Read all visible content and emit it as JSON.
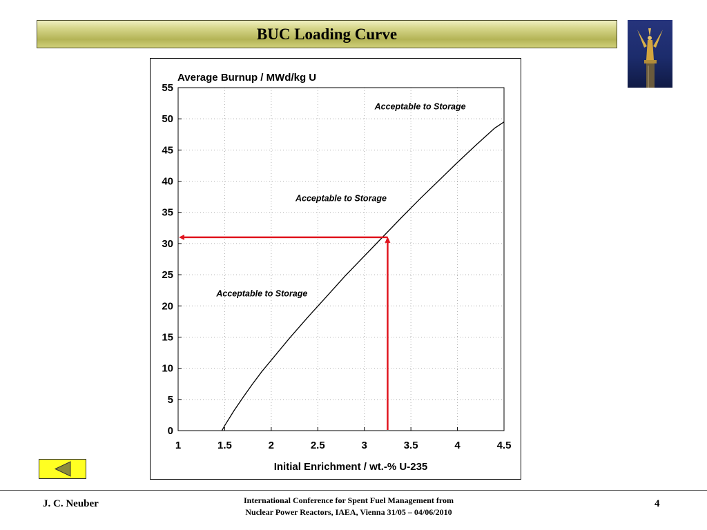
{
  "slide": {
    "title": "BUC Loading Curve",
    "footer": {
      "author": "J. C. Neuber",
      "conference_line1": "International Conference for Spent Fuel Management from",
      "conference_line2": "Nuclear Power Reactors, IAEA, Vienna 31/05 – 04/06/2010",
      "page_number": "4"
    },
    "logo_icon": "golden-statue-icon",
    "nav_icon": "back-triangle-icon"
  },
  "colors": {
    "title_bar": "#c8c86a",
    "curve": "#000000",
    "indicator": "#e0141e",
    "nav_button": "#ffff22",
    "nav_triangle": "#8a8a3c"
  },
  "chart_data": {
    "type": "line",
    "ylabel": "Average Burnup / MWd/kg U",
    "xlabel": "Initial Enrichment / wt.-% U-235",
    "xlim": [
      1,
      4.5
    ],
    "ylim": [
      0,
      55
    ],
    "x_ticks": [
      1,
      1.5,
      2,
      2.5,
      3,
      3.5,
      4,
      4.5
    ],
    "x_tick_labels": [
      "1",
      "1.5",
      "2",
      "2.5",
      "3",
      "3.5",
      "4",
      "4.5"
    ],
    "y_ticks": [
      0,
      5,
      10,
      15,
      20,
      25,
      30,
      35,
      40,
      45,
      50,
      55
    ],
    "y_tick_labels": [
      "0",
      "5",
      "10",
      "15",
      "20",
      "25",
      "30",
      "35",
      "40",
      "45",
      "50",
      "55"
    ],
    "grid": true,
    "series": [
      {
        "x": [
          1.47,
          1.5,
          1.6,
          1.7,
          1.8,
          1.9,
          2.0,
          2.2,
          2.4,
          2.6,
          2.8,
          3.0,
          3.2,
          3.4,
          3.6,
          3.8,
          4.0,
          4.2,
          4.4,
          4.5
        ],
        "y": [
          0,
          0.8,
          3.2,
          5.4,
          7.5,
          9.5,
          11.3,
          14.9,
          18.3,
          21.6,
          24.9,
          28.0,
          31.1,
          34.2,
          37.2,
          40.1,
          43.0,
          45.8,
          48.5,
          49.5
        ]
      }
    ],
    "annotations": [
      {
        "text": "Acceptable to Storage",
        "x": 3.6,
        "y": 51.5
      },
      {
        "text": "Acceptable to Storage",
        "x": 2.75,
        "y": 36.8
      },
      {
        "text": "Acceptable to Storage",
        "x": 1.9,
        "y": 21.5
      }
    ],
    "indicator": {
      "x": 3.25,
      "y": 31
    }
  }
}
